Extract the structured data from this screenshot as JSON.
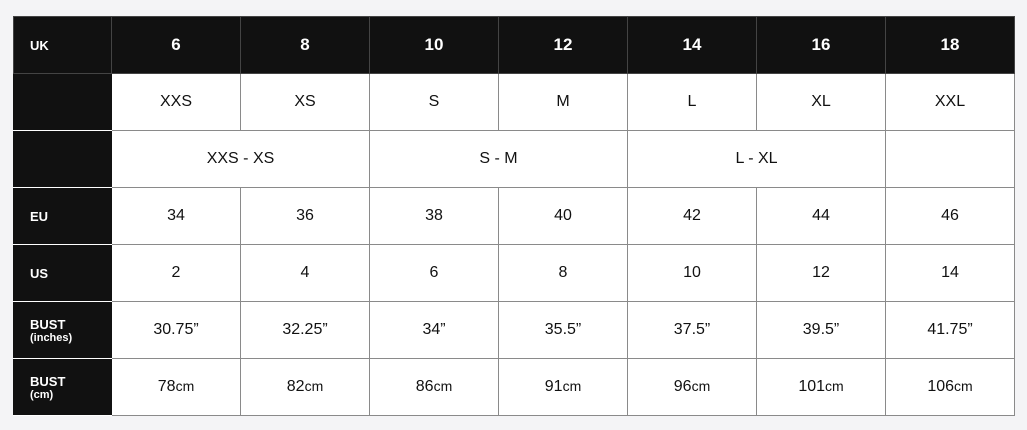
{
  "header": {
    "label": "UK",
    "sizes": [
      "6",
      "8",
      "10",
      "12",
      "14",
      "16",
      "18"
    ]
  },
  "letter_sizes": [
    "XXS",
    "XS",
    "S",
    "M",
    "L",
    "XL",
    "XXL"
  ],
  "grouped_sizes": [
    "XXS - XS",
    "S - M",
    "L - XL",
    ""
  ],
  "eu": {
    "label": "EU",
    "values": [
      "34",
      "36",
      "38",
      "40",
      "42",
      "44",
      "46"
    ]
  },
  "us": {
    "label": "US",
    "values": [
      "2",
      "4",
      "6",
      "8",
      "10",
      "12",
      "14"
    ]
  },
  "bust_in": {
    "label": "BUST",
    "unit": "(inches)",
    "values": [
      "30.75”",
      "32.25”",
      "34”",
      "35.5”",
      "37.5”",
      "39.5”",
      "41.75”"
    ]
  },
  "bust_cm": {
    "label": "BUST",
    "unit": "(cm)",
    "suffix": "cm",
    "values": [
      "78",
      "82",
      "86",
      "91",
      "96",
      "101",
      "106"
    ]
  }
}
